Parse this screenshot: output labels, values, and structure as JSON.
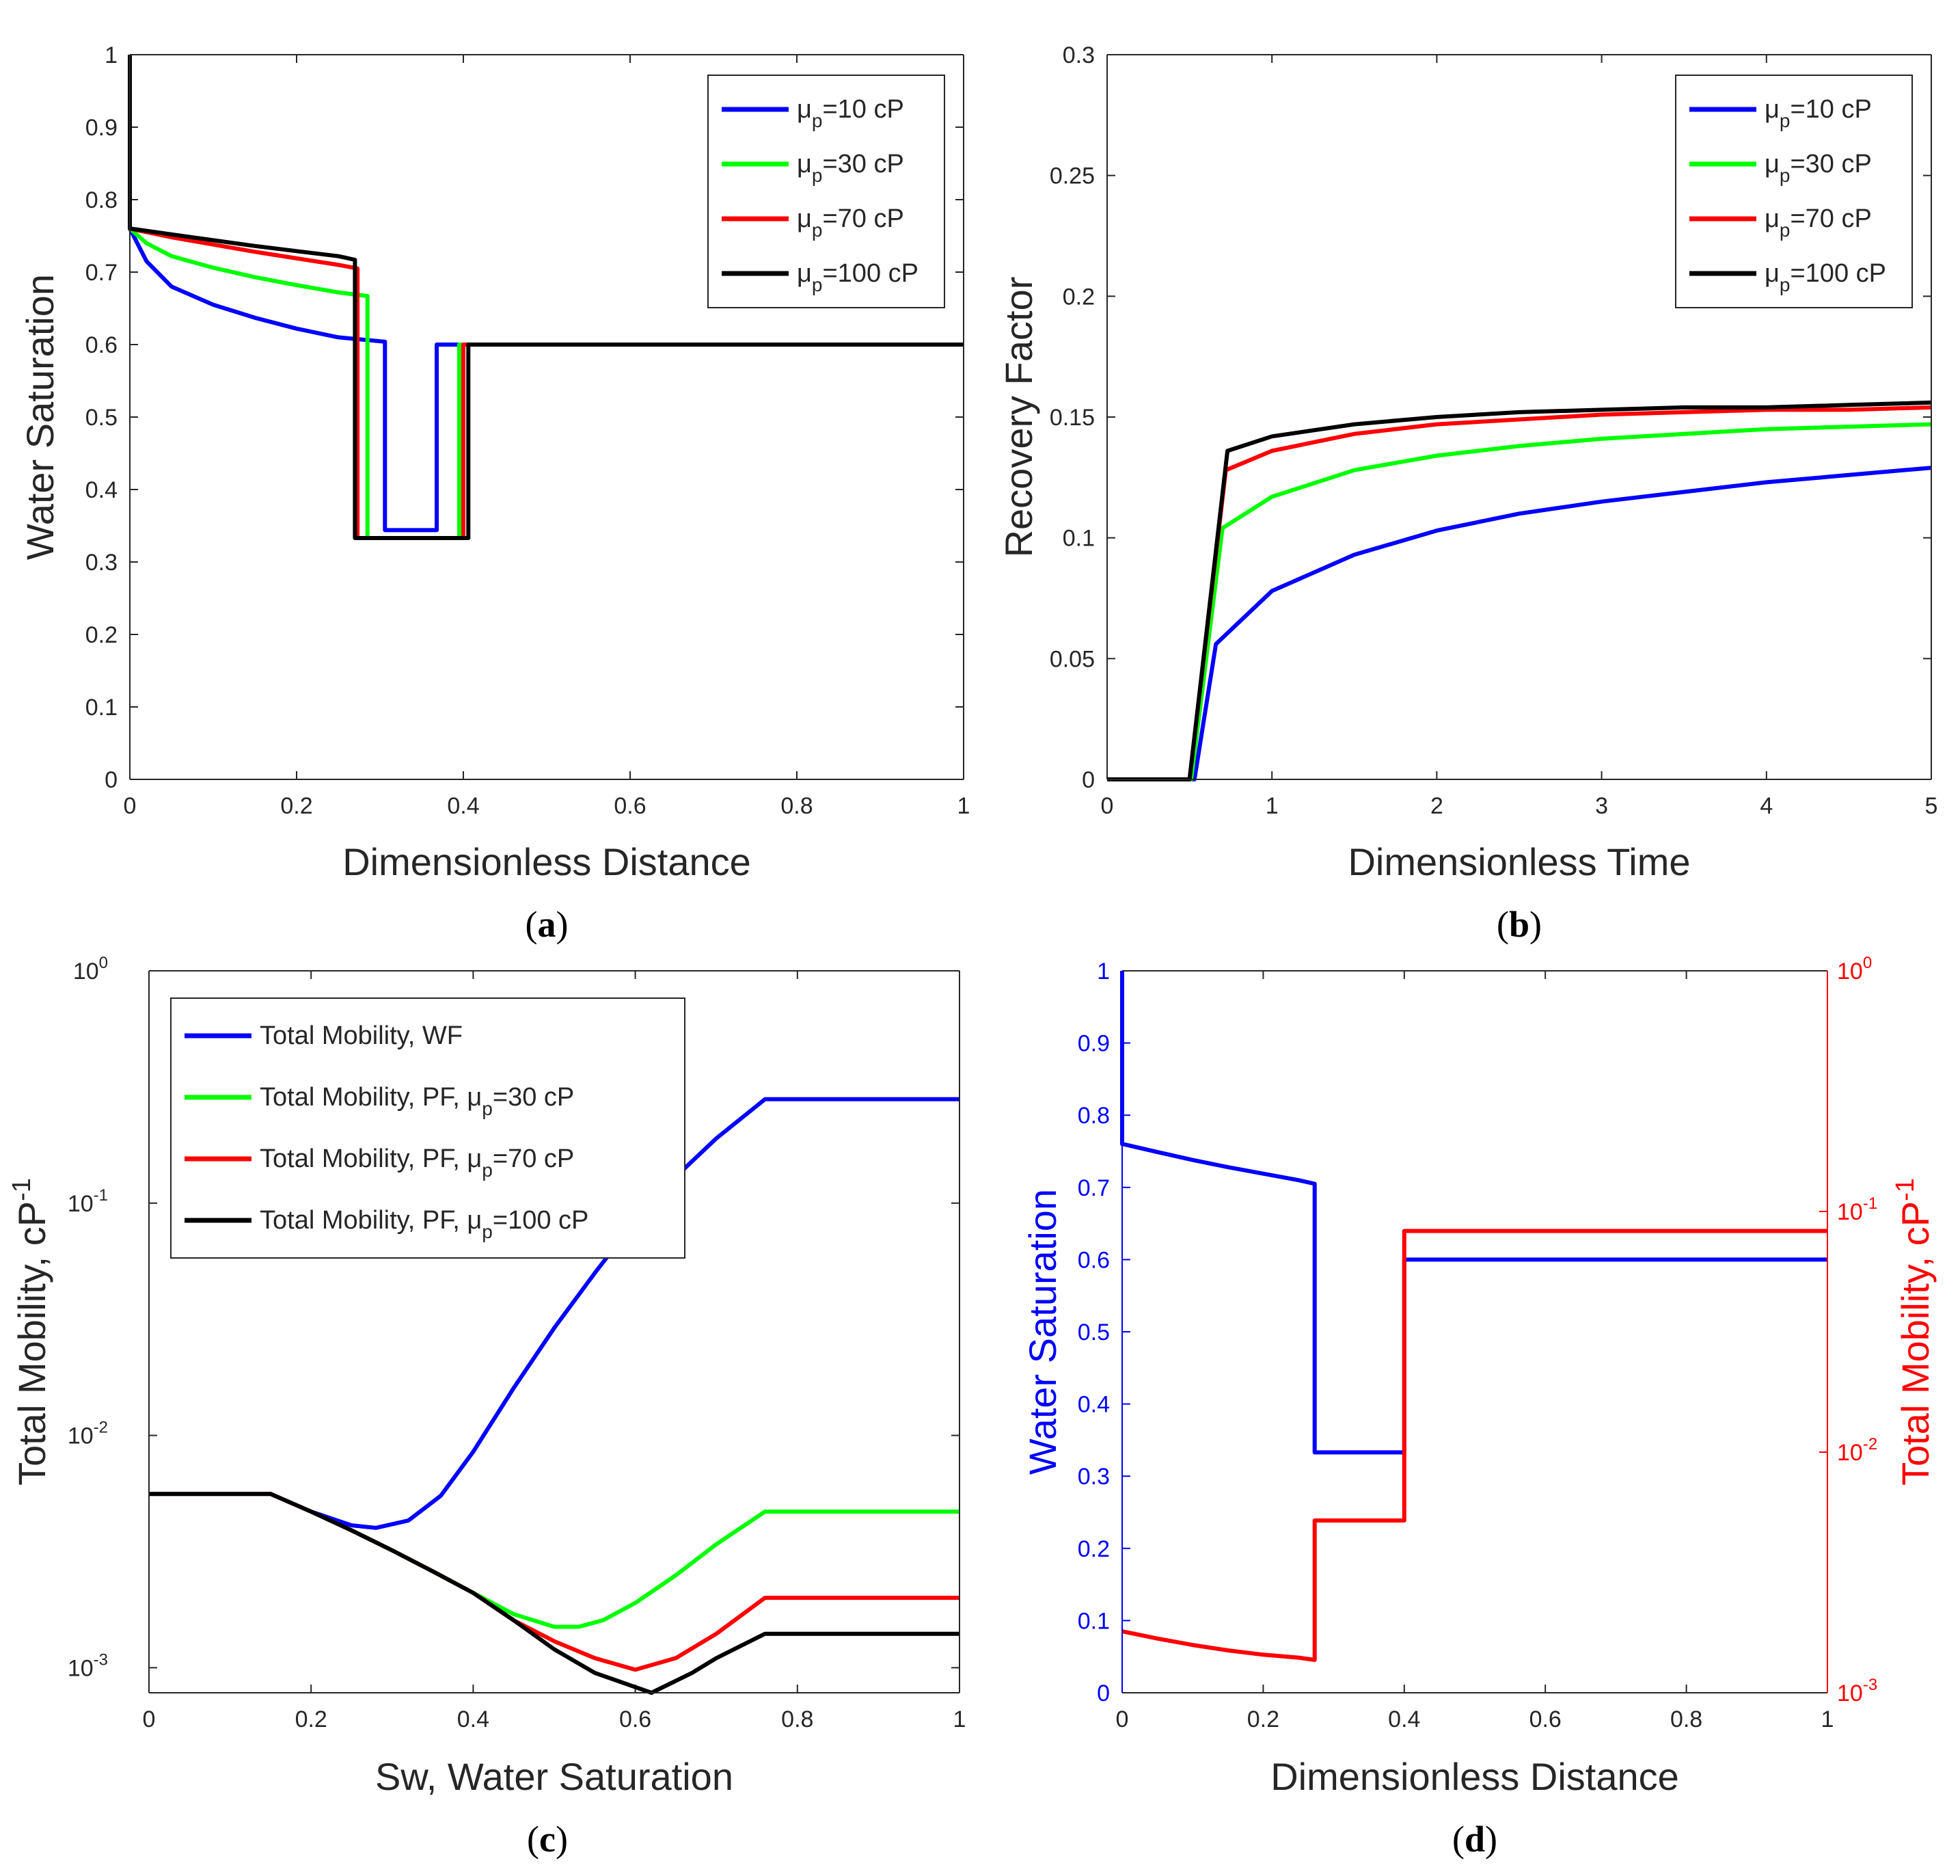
{
  "colors": {
    "blue": "#0000ff",
    "green": "#00ff00",
    "red": "#ff0000",
    "black": "#000000"
  },
  "chart_data": [
    {
      "id": "a",
      "type": "line",
      "panel_label": "a",
      "xlabel": "Dimensionless Distance",
      "ylabel": "Water Saturation",
      "xlim": [
        0,
        1
      ],
      "ylim": [
        0,
        1
      ],
      "xticks": [
        "0",
        "0.2",
        "0.4",
        "0.6",
        "0.8",
        "1"
      ],
      "yticks": [
        "0",
        "0.1",
        "0.2",
        "0.3",
        "0.4",
        "0.5",
        "0.6",
        "0.7",
        "0.8",
        "0.9",
        "1"
      ],
      "legend_position": "top-right",
      "series": [
        {
          "name": "μp=10 cP",
          "name_main": "μ",
          "name_sub": "p",
          "name_rest": "=10 cP",
          "color_key": "blue",
          "x": [
            0,
            0.02,
            0.05,
            0.1,
            0.15,
            0.2,
            0.25,
            0.306,
            0.306,
            0.368,
            0.368,
            1
          ],
          "y": [
            0.76,
            0.715,
            0.68,
            0.655,
            0.637,
            0.622,
            0.61,
            0.604,
            0.344,
            0.344,
            0.6,
            0.6
          ]
        },
        {
          "name": "μp=30 cP",
          "name_main": "μ",
          "name_sub": "p",
          "name_rest": "=30 cP",
          "color_key": "green",
          "x": [
            0,
            0.02,
            0.05,
            0.1,
            0.15,
            0.2,
            0.25,
            0.285,
            0.285,
            0.395,
            0.395,
            1
          ],
          "y": [
            0.76,
            0.74,
            0.722,
            0.706,
            0.693,
            0.682,
            0.672,
            0.667,
            0.333,
            0.333,
            0.6,
            0.6
          ]
        },
        {
          "name": "μp=70 cP",
          "name_main": "μ",
          "name_sub": "p",
          "name_rest": "=70 cP",
          "color_key": "red",
          "x": [
            0,
            0.05,
            0.1,
            0.15,
            0.2,
            0.25,
            0.273,
            0.273,
            0.4,
            0.4,
            1
          ],
          "y": [
            0.76,
            0.748,
            0.738,
            0.728,
            0.719,
            0.71,
            0.705,
            0.333,
            0.333,
            0.6,
            0.6
          ]
        },
        {
          "name": "μp=100 cP",
          "name_main": "μ",
          "name_sub": "p",
          "name_rest": "=100 cP",
          "color_key": "black",
          "x": [
            0,
            0,
            0.001,
            0.05,
            0.1,
            0.15,
            0.2,
            0.25,
            0.27,
            0.27,
            0.406,
            0.406,
            1
          ],
          "y": [
            1,
            0.76,
            0.76,
            0.752,
            0.744,
            0.736,
            0.729,
            0.722,
            0.717,
            0.333,
            0.333,
            0.6,
            0.6
          ]
        }
      ]
    },
    {
      "id": "b",
      "type": "line",
      "panel_label": "b",
      "xlabel": "Dimensionless Time",
      "ylabel": "Recovery Factor",
      "xlim": [
        0,
        5
      ],
      "ylim": [
        0,
        0.3
      ],
      "xticks": [
        "0",
        "1",
        "2",
        "3",
        "4",
        "5"
      ],
      "yticks": [
        "0",
        "0.05",
        "0.1",
        "0.15",
        "0.2",
        "0.25",
        "0.3"
      ],
      "legend_position": "top-right",
      "series": [
        {
          "name": "μp=10 cP",
          "name_main": "μ",
          "name_sub": "p",
          "name_rest": "=10 cP",
          "color_key": "blue",
          "x": [
            0,
            0.53,
            0.66,
            1,
            1.5,
            2,
            2.5,
            3,
            3.5,
            4,
            4.5,
            5
          ],
          "y": [
            0,
            0,
            0.056,
            0.078,
            0.093,
            0.103,
            0.11,
            0.115,
            0.119,
            0.123,
            0.126,
            0.129
          ]
        },
        {
          "name": "μp=30 cP",
          "name_main": "μ",
          "name_sub": "p",
          "name_rest": "=30 cP",
          "color_key": "green",
          "x": [
            0,
            0.51,
            0.7,
            1,
            1.5,
            2,
            2.5,
            3,
            3.5,
            4,
            4.5,
            5
          ],
          "y": [
            0,
            0,
            0.104,
            0.117,
            0.128,
            0.134,
            0.138,
            0.141,
            0.143,
            0.145,
            0.146,
            0.147
          ]
        },
        {
          "name": "μp=70 cP",
          "name_main": "μ",
          "name_sub": "p",
          "name_rest": "=70 cP",
          "color_key": "red",
          "x": [
            0,
            0.5,
            0.72,
            1,
            1.5,
            2,
            2.5,
            3,
            3.5,
            4,
            4.5,
            5
          ],
          "y": [
            0,
            0,
            0.128,
            0.136,
            0.143,
            0.147,
            0.149,
            0.151,
            0.152,
            0.153,
            0.153,
            0.154
          ]
        },
        {
          "name": "μp=100 cP",
          "name_main": "μ",
          "name_sub": "p",
          "name_rest": "=100 cP",
          "color_key": "black",
          "x": [
            0,
            0.5,
            0.73,
            1,
            1.5,
            2,
            2.5,
            3,
            3.5,
            4,
            4.5,
            5
          ],
          "y": [
            0,
            0,
            0.136,
            0.142,
            0.147,
            0.15,
            0.152,
            0.153,
            0.154,
            0.154,
            0.155,
            0.156
          ]
        }
      ]
    },
    {
      "id": "c",
      "type": "line",
      "yscale": "log",
      "panel_label": "c",
      "xlabel": "Sw, Water Saturation",
      "ylabel": "Total Mobility,  cP",
      "ylabel_sup": "-1",
      "xlim": [
        0,
        1
      ],
      "ylim": [
        0.00078,
        1
      ],
      "xticks": [
        "0",
        "0.2",
        "0.4",
        "0.6",
        "0.8",
        "1"
      ],
      "yticks": [
        {
          "value": 0.001,
          "base": "10",
          "exp": "-3"
        },
        {
          "value": 0.01,
          "base": "10",
          "exp": "-2"
        },
        {
          "value": 0.1,
          "base": "10",
          "exp": "-1"
        },
        {
          "value": 1,
          "base": "10",
          "exp": "0"
        }
      ],
      "legend_position": "top-left",
      "series": [
        {
          "name": "Total Mobility, WF",
          "name_main": "Total Mobility, WF",
          "name_sub": "",
          "name_rest": "",
          "color_key": "blue",
          "x": [
            0,
            0.15,
            0.2,
            0.25,
            0.28,
            0.32,
            0.36,
            0.4,
            0.45,
            0.5,
            0.55,
            0.6,
            0.65,
            0.7,
            0.76,
            1
          ],
          "y": [
            0.0056,
            0.0056,
            0.0047,
            0.0041,
            0.004,
            0.0043,
            0.0055,
            0.0085,
            0.016,
            0.029,
            0.05,
            0.084,
            0.13,
            0.19,
            0.28,
            0.28
          ]
        },
        {
          "name": "Total Mobility, PF, μp=30 cP",
          "name_main": "Total Mobility, PF, μ",
          "name_sub": "p",
          "name_rest": "=30 cP",
          "color_key": "green",
          "x": [
            0,
            0.15,
            0.2,
            0.25,
            0.3,
            0.35,
            0.4,
            0.45,
            0.5,
            0.53,
            0.56,
            0.6,
            0.65,
            0.7,
            0.76,
            1
          ],
          "y": [
            0.0056,
            0.0056,
            0.0047,
            0.0039,
            0.0032,
            0.0026,
            0.0021,
            0.0017,
            0.0015,
            0.0015,
            0.0016,
            0.0019,
            0.0025,
            0.0034,
            0.0047,
            0.0047
          ]
        },
        {
          "name": "Total Mobility, PF, μp=70 cP",
          "name_main": "Total Mobility, PF, μ",
          "name_sub": "p",
          "name_rest": "=70 cP",
          "color_key": "red",
          "x": [
            0,
            0.15,
            0.2,
            0.25,
            0.3,
            0.35,
            0.4,
            0.45,
            0.5,
            0.55,
            0.6,
            0.65,
            0.7,
            0.76,
            1
          ],
          "y": [
            0.0056,
            0.0056,
            0.0047,
            0.0039,
            0.0032,
            0.0026,
            0.0021,
            0.0016,
            0.0013,
            0.0011,
            0.00098,
            0.0011,
            0.0014,
            0.002,
            0.002
          ]
        },
        {
          "name": "Total Mobility, PF, μp=100 cP",
          "name_main": "Total Mobility, PF, μ",
          "name_sub": "p",
          "name_rest": "=100 cP",
          "color_key": "black",
          "x": [
            0,
            0.15,
            0.2,
            0.25,
            0.3,
            0.35,
            0.4,
            0.45,
            0.5,
            0.55,
            0.62,
            0.67,
            0.7,
            0.76,
            1
          ],
          "y": [
            0.0056,
            0.0056,
            0.0047,
            0.0039,
            0.0032,
            0.0026,
            0.0021,
            0.0016,
            0.0012,
            0.00095,
            0.00078,
            0.00095,
            0.0011,
            0.0014,
            0.0014
          ]
        }
      ]
    },
    {
      "id": "d",
      "type": "line",
      "dual_axis": true,
      "panel_label": "d",
      "xlabel": "Dimensionless Distance",
      "ylabel": "Water Saturation",
      "ylabel_right": "Total Mobility,  cP",
      "ylabel_right_sup": "-1",
      "xlim": [
        0,
        1
      ],
      "ylim": [
        0,
        1
      ],
      "ylim_right": [
        0.001,
        1
      ],
      "xticks": [
        "0",
        "0.2",
        "0.4",
        "0.6",
        "0.8",
        "1"
      ],
      "yticks": [
        "0",
        "0.1",
        "0.2",
        "0.3",
        "0.4",
        "0.5",
        "0.6",
        "0.7",
        "0.8",
        "0.9",
        "1"
      ],
      "yticks_right": [
        {
          "value": 0.001,
          "base": "10",
          "exp": "-3"
        },
        {
          "value": 0.01,
          "base": "10",
          "exp": "-2"
        },
        {
          "value": 0.1,
          "base": "10",
          "exp": "-1"
        },
        {
          "value": 1,
          "base": "10",
          "exp": "0"
        }
      ],
      "series": [
        {
          "name": "Water Saturation",
          "axis": "left",
          "color_key": "blue",
          "x": [
            0,
            0,
            0.001,
            0.05,
            0.1,
            0.15,
            0.2,
            0.25,
            0.273,
            0.273,
            0.4,
            0.4,
            1
          ],
          "y": [
            1,
            0.76,
            0.76,
            0.749,
            0.738,
            0.728,
            0.719,
            0.71,
            0.705,
            0.333,
            0.333,
            0.6,
            0.6
          ]
        },
        {
          "name": "Total Mobility",
          "axis": "right",
          "color_key": "red",
          "x": [
            0,
            0.05,
            0.1,
            0.15,
            0.2,
            0.25,
            0.273,
            0.273,
            0.4,
            0.4,
            1
          ],
          "y": [
            0.0018,
            0.00168,
            0.00158,
            0.0015,
            0.00144,
            0.0014,
            0.00137,
            0.0052,
            0.0052,
            0.083,
            0.083
          ]
        }
      ]
    }
  ]
}
